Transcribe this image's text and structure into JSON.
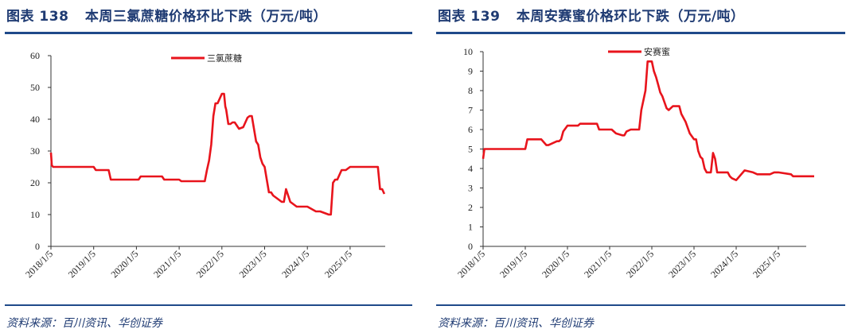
{
  "colors": {
    "line": "#e8141c",
    "title": "#1f3b73",
    "rule": "#1f4a8a",
    "axis": "#333333"
  },
  "charts": [
    {
      "title_prefix": "图表",
      "number": "138",
      "title": "本周三氯蔗糖价格环比下跌（万元/吨）",
      "source": "资料来源：百川资讯、华创证券"
    },
    {
      "title_prefix": "图表",
      "number": "139",
      "title": "本周安赛蜜价格环比下跌（万元/吨）",
      "source": "资料来源：百川资讯、华创证券"
    }
  ],
  "chart_data": [
    {
      "type": "line",
      "title": "本周三氯蔗糖价格环比下跌（万元/吨）",
      "xlabel": "",
      "ylabel": "",
      "ylim": [
        0,
        60
      ],
      "yticks": [
        0,
        10,
        20,
        30,
        40,
        50,
        60
      ],
      "xticks": [
        "2018/1/5",
        "2019/1/5",
        "2020/1/5",
        "2021/1/5",
        "2022/1/5",
        "2023/1/5",
        "2024/1/5",
        "2025/1/5"
      ],
      "legend": {
        "position": "top-center"
      },
      "grid": false,
      "series": [
        {
          "name": "三氯蔗糖",
          "x": [
            2018.0,
            2018.02,
            2018.05,
            2018.5,
            2019.0,
            2019.05,
            2019.35,
            2019.4,
            2019.43,
            2020.0,
            2020.05,
            2020.1,
            2020.6,
            2020.65,
            2021.0,
            2021.05,
            2021.1,
            2021.6,
            2021.65,
            2021.7,
            2021.75,
            2021.8,
            2021.85,
            2021.9,
            2022.0,
            2022.05,
            2022.08,
            2022.1,
            2022.15,
            2022.2,
            2022.25,
            2022.3,
            2022.4,
            2022.5,
            2022.6,
            2022.65,
            2022.7,
            2022.75,
            2022.8,
            2022.85,
            2022.9,
            2022.95,
            2023.0,
            2023.05,
            2023.1,
            2023.15,
            2023.2,
            2023.25,
            2023.3,
            2023.4,
            2023.45,
            2023.5,
            2023.6,
            2023.7,
            2023.75,
            2023.8,
            2023.85,
            2023.9,
            2024.0,
            2024.2,
            2024.3,
            2024.4,
            2024.5,
            2024.55,
            2024.6,
            2024.65,
            2024.7,
            2024.8,
            2024.85,
            2024.9,
            2025.0,
            2025.05,
            2025.6,
            2025.65,
            2025.7,
            2025.75,
            2025.8
          ],
          "values": [
            29.5,
            25.5,
            25,
            25,
            25,
            24,
            24,
            21,
            21,
            21,
            21,
            22,
            22,
            21,
            21,
            20.5,
            20.5,
            20.5,
            24,
            27,
            32,
            41,
            45,
            45,
            48,
            48,
            44,
            43,
            38.5,
            38.5,
            39,
            39,
            37,
            37.5,
            40.5,
            41,
            41,
            37,
            33,
            32,
            28,
            26,
            25,
            21,
            17,
            17,
            16,
            15.5,
            15,
            14,
            14,
            18,
            14,
            13,
            12.5,
            12.5,
            12.5,
            12.5,
            12.5,
            11,
            11,
            10.5,
            10,
            10,
            20,
            21,
            21,
            24,
            24,
            24,
            25,
            25,
            25,
            25,
            18,
            18,
            16.5
          ]
        }
      ]
    },
    {
      "type": "line",
      "title": "本周安赛蜜价格环比下跌（万元/吨）",
      "xlabel": "",
      "ylabel": "",
      "ylim": [
        0,
        10
      ],
      "yticks": [
        0,
        1,
        2,
        3,
        4,
        5,
        6,
        7,
        8,
        9,
        10
      ],
      "xticks": [
        "2018/1/5",
        "2019/1/5",
        "2020/1/5",
        "2021/1/5",
        "2022/1/5",
        "2023/1/5",
        "2024/1/5",
        "2025/1/5"
      ],
      "legend": {
        "position": "top-center"
      },
      "grid": false,
      "series": [
        {
          "name": "安赛蜜",
          "x": [
            2018.0,
            2018.03,
            2018.05,
            2018.5,
            2019.0,
            2019.05,
            2019.35,
            2019.38,
            2019.5,
            2019.55,
            2019.75,
            2019.8,
            2019.85,
            2019.9,
            2020.0,
            2020.25,
            2020.3,
            2020.45,
            2020.7,
            2020.75,
            2021.0,
            2021.05,
            2021.15,
            2021.3,
            2021.35,
            2021.4,
            2021.5,
            2021.55,
            2021.7,
            2021.75,
            2021.8,
            2021.85,
            2021.9,
            2021.95,
            2022.0,
            2022.05,
            2022.1,
            2022.15,
            2022.2,
            2022.25,
            2022.3,
            2022.35,
            2022.4,
            2022.5,
            2022.6,
            2022.65,
            2022.7,
            2022.8,
            2022.9,
            2023.0,
            2023.05,
            2023.1,
            2023.15,
            2023.2,
            2023.25,
            2023.3,
            2023.4,
            2023.45,
            2023.5,
            2023.55,
            2023.6,
            2023.65,
            2023.7,
            2023.75,
            2023.8,
            2023.85,
            2023.9,
            2024.0,
            2024.2,
            2024.4,
            2024.5,
            2024.6,
            2024.7,
            2024.75,
            2024.8,
            2024.9,
            2025.0,
            2025.3,
            2025.35,
            2025.45,
            2025.5,
            2025.6,
            2025.75,
            2025.85
          ],
          "values": [
            4.5,
            5,
            5,
            5,
            5,
            5.5,
            5.5,
            5.5,
            5.2,
            5.2,
            5.4,
            5.4,
            5.5,
            5.9,
            6.2,
            6.2,
            6.3,
            6.3,
            6.3,
            6,
            6,
            6,
            5.8,
            5.7,
            5.7,
            5.9,
            6,
            6,
            6,
            7,
            7.5,
            8,
            9.5,
            9.5,
            9.5,
            9.0,
            8.7,
            8.3,
            7.9,
            7.7,
            7.4,
            7.1,
            7.0,
            7.2,
            7.2,
            7.2,
            6.8,
            6.4,
            5.8,
            5.5,
            5.5,
            4.9,
            4.6,
            4.5,
            4.0,
            3.8,
            3.8,
            4.8,
            4.5,
            3.8,
            3.8,
            3.8,
            3.8,
            3.8,
            3.8,
            3.6,
            3.5,
            3.4,
            3.9,
            3.8,
            3.7,
            3.7,
            3.7,
            3.7,
            3.7,
            3.8,
            3.8,
            3.7,
            3.6,
            3.6,
            3.6,
            3.6,
            3.6,
            3.6
          ]
        }
      ]
    }
  ]
}
